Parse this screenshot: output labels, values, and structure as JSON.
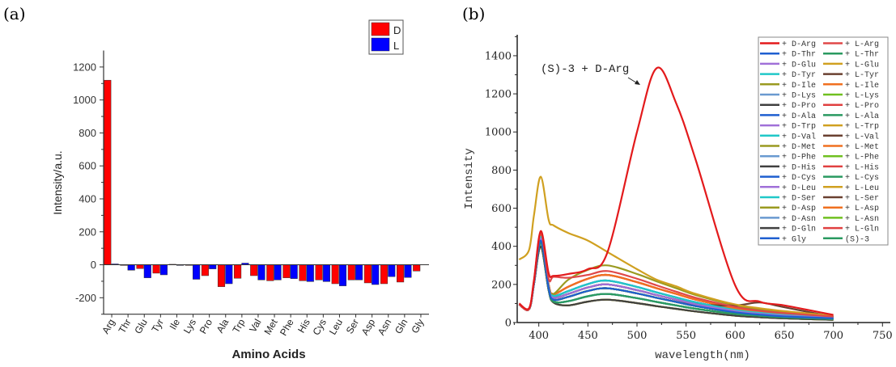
{
  "panel_labels": {
    "a": "(a)",
    "b": "(b)"
  },
  "chart_data": [
    {
      "type": "bar",
      "ylabel": "Intensity/a.u.",
      "xlabel": "Amino Acids",
      "ylim": [
        -300,
        1300
      ],
      "yticks": [
        -200,
        0,
        200,
        400,
        600,
        800,
        1000,
        1200
      ],
      "legend_position": "top-right",
      "categories": [
        "Arg",
        "Thr",
        "Glu",
        "Tyr",
        "Ile",
        "Lys",
        "Pro",
        "Ala",
        "Trp",
        "Val",
        "Met",
        "Phe",
        "His",
        "Cys",
        "Leu",
        "Ser",
        "Asp",
        "Asn",
        "Gln",
        "Gly"
      ],
      "series": [
        {
          "name": "D",
          "color": "#ff0000",
          "values": [
            1120,
            -3,
            -23,
            -51,
            3,
            -3,
            -66,
            -133,
            -82,
            -66,
            -97,
            -79,
            -97,
            -92,
            -115,
            -92,
            -110,
            -115,
            -105,
            -38
          ]
        },
        {
          "name": "L",
          "color": "#0000ff",
          "values": [
            5,
            -33,
            -79,
            -61,
            0,
            -88,
            -25,
            -115,
            10,
            -92,
            -92,
            -84,
            -102,
            -102,
            -128,
            -92,
            -120,
            -72,
            -77,
            null
          ]
        }
      ]
    },
    {
      "type": "line",
      "ylabel": "Intensity",
      "xlabel": "wavelength(nm)",
      "xlim": [
        378,
        758
      ],
      "ylim": [
        0,
        1510
      ],
      "xticks": [
        400,
        450,
        500,
        550,
        600,
        650,
        700,
        750
      ],
      "yticks": [
        0,
        200,
        400,
        600,
        800,
        1000,
        1200,
        1400
      ],
      "annotation": "(S)-3 + D-Arg",
      "legend_position": "top-right",
      "x": [
        380,
        390,
        395,
        402,
        410,
        415,
        430,
        450,
        470,
        500,
        520,
        540,
        560,
        600,
        625,
        650,
        700
      ],
      "series": [
        {
          "name": "+ D-Arg",
          "color": "#e31a1c",
          "values": [
            100,
            75,
            220,
            480,
            260,
            245,
            255,
            280,
            370,
            1000,
            1335,
            1150,
            850,
            195,
            110,
            90,
            40
          ]
        },
        {
          "name": "+ L-Arg",
          "color": "#e04848",
          "values": [
            95,
            70,
            210,
            470,
            230,
            240,
            235,
            250,
            270,
            230,
            195,
            162,
            130,
            82,
            62,
            49,
            32
          ]
        },
        {
          "name": "+ D-Thr",
          "color": "#1f5fd0",
          "values": [
            95,
            70,
            200,
            430,
            180,
            120,
            135,
            166,
            180,
            153,
            130,
            108,
            86,
            54,
            41,
            32,
            22
          ]
        },
        {
          "name": "+ L-Thr",
          "color": "#2a9a60",
          "values": [
            95,
            70,
            200,
            420,
            175,
            110,
            112,
            138,
            150,
            128,
            108,
            90,
            72,
            45,
            35,
            27,
            18
          ]
        },
        {
          "name": "+ D-Glu",
          "color": "#a070d8",
          "values": [
            95,
            70,
            200,
            440,
            185,
            130,
            150,
            184,
            200,
            170,
            144,
            120,
            96,
            60,
            46,
            36,
            24
          ]
        },
        {
          "name": "+ L-Glu",
          "color": "#d0a020",
          "values": [
            330,
            380,
            560,
            765,
            540,
            510,
            470,
            430,
            370,
            280,
            225,
            190,
            150,
            95,
            75,
            60,
            35
          ]
        },
        {
          "name": "+ D-Tyr",
          "color": "#20c8c8",
          "values": [
            95,
            70,
            200,
            450,
            190,
            140,
            165,
            202,
            220,
            187,
            158,
            132,
            106,
            66,
            51,
            40,
            26
          ]
        },
        {
          "name": "+ L-Tyr",
          "color": "#6a4030",
          "values": [
            95,
            70,
            200,
            440,
            185,
            130,
            150,
            184,
            200,
            170,
            144,
            120,
            96,
            90,
            105,
            80,
            30
          ]
        },
        {
          "name": "+ D-Ile",
          "color": "#9a9a20",
          "values": [
            95,
            70,
            200,
            450,
            190,
            150,
            225,
            276,
            300,
            255,
            216,
            180,
            144,
            90,
            69,
            54,
            36
          ]
        },
        {
          "name": "+ L-Ile",
          "color": "#f07020",
          "values": [
            95,
            70,
            210,
            460,
            200,
            150,
            188,
            230,
            250,
            212,
            180,
            150,
            120,
            75,
            58,
            45,
            30
          ]
        },
        {
          "name": "+ D-Lys",
          "color": "#6a9ad0",
          "values": [
            95,
            70,
            200,
            420,
            175,
            110,
            112,
            138,
            150,
            128,
            108,
            90,
            72,
            45,
            35,
            27,
            18
          ]
        },
        {
          "name": "+ L-Lys",
          "color": "#70c020",
          "values": [
            95,
            70,
            200,
            430,
            180,
            120,
            135,
            166,
            180,
            153,
            130,
            108,
            86,
            54,
            41,
            32,
            22
          ]
        },
        {
          "name": "+ D-Pro",
          "color": "#404040",
          "values": [
            95,
            70,
            200,
            400,
            170,
            105,
            90,
            110,
            120,
            102,
            86,
            72,
            58,
            36,
            28,
            22,
            14
          ]
        },
        {
          "name": "+ L-Pro",
          "color": "#e04040",
          "values": [
            95,
            70,
            210,
            460,
            200,
            150,
            188,
            230,
            250,
            212,
            180,
            150,
            120,
            75,
            58,
            45,
            30
          ]
        },
        {
          "name": "+ D-Ala",
          "color": "#1f5fd0",
          "values": [
            95,
            70,
            200,
            450,
            190,
            140,
            165,
            202,
            220,
            187,
            158,
            132,
            106,
            66,
            51,
            40,
            26
          ]
        },
        {
          "name": "+ L-Ala",
          "color": "#2a9a60",
          "values": [
            95,
            70,
            200,
            430,
            180,
            120,
            135,
            166,
            180,
            153,
            130,
            108,
            86,
            54,
            41,
            32,
            22
          ]
        },
        {
          "name": "+ D-Trp",
          "color": "#a070d8",
          "values": [
            95,
            70,
            200,
            440,
            185,
            130,
            150,
            184,
            200,
            170,
            144,
            120,
            96,
            60,
            46,
            36,
            24
          ]
        },
        {
          "name": "+ L-Trp",
          "color": "#d0a020",
          "values": [
            95,
            70,
            200,
            400,
            170,
            105,
            90,
            110,
            120,
            102,
            86,
            72,
            58,
            36,
            28,
            22,
            14
          ]
        },
        {
          "name": "+ D-Val",
          "color": "#20c8c8",
          "values": [
            95,
            70,
            200,
            420,
            175,
            110,
            112,
            138,
            150,
            128,
            108,
            90,
            72,
            45,
            35,
            27,
            18
          ]
        },
        {
          "name": "+ L-Val",
          "color": "#6a4030",
          "values": [
            95,
            70,
            200,
            430,
            180,
            120,
            135,
            166,
            180,
            153,
            130,
            108,
            86,
            54,
            41,
            32,
            22
          ]
        },
        {
          "name": "+ D-Met",
          "color": "#9a9a20",
          "values": [
            95,
            70,
            200,
            400,
            170,
            105,
            90,
            110,
            120,
            102,
            86,
            72,
            58,
            36,
            28,
            22,
            14
          ]
        },
        {
          "name": "+ L-Met",
          "color": "#f07020",
          "values": [
            95,
            70,
            200,
            440,
            185,
            130,
            150,
            184,
            200,
            170,
            144,
            120,
            96,
            60,
            46,
            36,
            24
          ]
        },
        {
          "name": "+ D-Phe",
          "color": "#6a9ad0",
          "values": [
            95,
            70,
            200,
            450,
            190,
            140,
            165,
            202,
            220,
            187,
            158,
            132,
            106,
            66,
            51,
            40,
            26
          ]
        },
        {
          "name": "+ L-Phe",
          "color": "#70c020",
          "values": [
            95,
            70,
            200,
            420,
            175,
            110,
            112,
            138,
            150,
            128,
            108,
            90,
            72,
            45,
            35,
            27,
            18
          ]
        },
        {
          "name": "+ D-His",
          "color": "#404040",
          "values": [
            95,
            70,
            200,
            430,
            180,
            120,
            135,
            166,
            180,
            153,
            130,
            108,
            86,
            54,
            41,
            32,
            22
          ]
        },
        {
          "name": "+ L-His",
          "color": "#e04040",
          "values": [
            95,
            70,
            210,
            460,
            200,
            150,
            188,
            230,
            250,
            212,
            180,
            150,
            120,
            75,
            58,
            45,
            30
          ]
        },
        {
          "name": "+ D-Cys",
          "color": "#1f5fd0",
          "values": [
            95,
            70,
            200,
            440,
            185,
            130,
            150,
            184,
            200,
            170,
            144,
            120,
            96,
            60,
            46,
            36,
            24
          ]
        },
        {
          "name": "+ L-Cys",
          "color": "#2a9a60",
          "values": [
            95,
            70,
            200,
            420,
            175,
            110,
            112,
            138,
            150,
            128,
            108,
            90,
            72,
            45,
            35,
            27,
            18
          ]
        },
        {
          "name": "+ D-Leu",
          "color": "#a070d8",
          "values": [
            95,
            70,
            200,
            450,
            190,
            140,
            165,
            202,
            220,
            187,
            158,
            132,
            106,
            66,
            51,
            40,
            26
          ]
        },
        {
          "name": "+ L-Leu",
          "color": "#d0a020",
          "values": [
            95,
            70,
            200,
            430,
            180,
            120,
            135,
            166,
            180,
            153,
            130,
            108,
            86,
            54,
            41,
            32,
            22
          ]
        },
        {
          "name": "+ D-Ser",
          "color": "#20c8c8",
          "values": [
            95,
            70,
            200,
            400,
            170,
            105,
            90,
            110,
            120,
            102,
            86,
            72,
            58,
            36,
            28,
            22,
            14
          ]
        },
        {
          "name": "+ L-Ser",
          "color": "#6a4030",
          "values": [
            95,
            70,
            200,
            420,
            175,
            110,
            112,
            138,
            150,
            128,
            108,
            90,
            72,
            45,
            35,
            27,
            18
          ]
        },
        {
          "name": "+ D-Asp",
          "color": "#9a9a20",
          "values": [
            95,
            70,
            200,
            430,
            180,
            120,
            135,
            166,
            180,
            153,
            130,
            108,
            86,
            54,
            41,
            32,
            22
          ]
        },
        {
          "name": "+ L-Asp",
          "color": "#f07020",
          "values": [
            95,
            70,
            200,
            400,
            170,
            105,
            90,
            110,
            120,
            102,
            86,
            72,
            58,
            36,
            28,
            22,
            14
          ]
        },
        {
          "name": "+ D-Asn",
          "color": "#6a9ad0",
          "values": [
            95,
            70,
            200,
            440,
            185,
            130,
            150,
            184,
            200,
            170,
            144,
            120,
            96,
            60,
            46,
            36,
            24
          ]
        },
        {
          "name": "+ L-Asn",
          "color": "#70c020",
          "values": [
            95,
            70,
            200,
            450,
            190,
            140,
            165,
            202,
            220,
            187,
            158,
            132,
            106,
            66,
            51,
            40,
            26
          ]
        },
        {
          "name": "+ D-Gln",
          "color": "#404040",
          "values": [
            95,
            70,
            200,
            420,
            175,
            110,
            112,
            138,
            150,
            128,
            108,
            90,
            72,
            45,
            35,
            27,
            18
          ]
        },
        {
          "name": "+ L-Gln",
          "color": "#e04040",
          "values": [
            95,
            70,
            210,
            460,
            200,
            150,
            188,
            230,
            250,
            212,
            180,
            150,
            120,
            75,
            58,
            45,
            30
          ]
        },
        {
          "name": "+ Gly",
          "color": "#1f5fd0",
          "values": [
            95,
            70,
            200,
            430,
            180,
            120,
            135,
            166,
            180,
            153,
            130,
            108,
            86,
            54,
            41,
            32,
            22
          ]
        },
        {
          "name": "(S)-3",
          "color": "#2a9a60",
          "values": [
            95,
            70,
            200,
            440,
            185,
            130,
            150,
            184,
            200,
            170,
            144,
            120,
            96,
            60,
            46,
            36,
            24
          ]
        }
      ]
    }
  ]
}
